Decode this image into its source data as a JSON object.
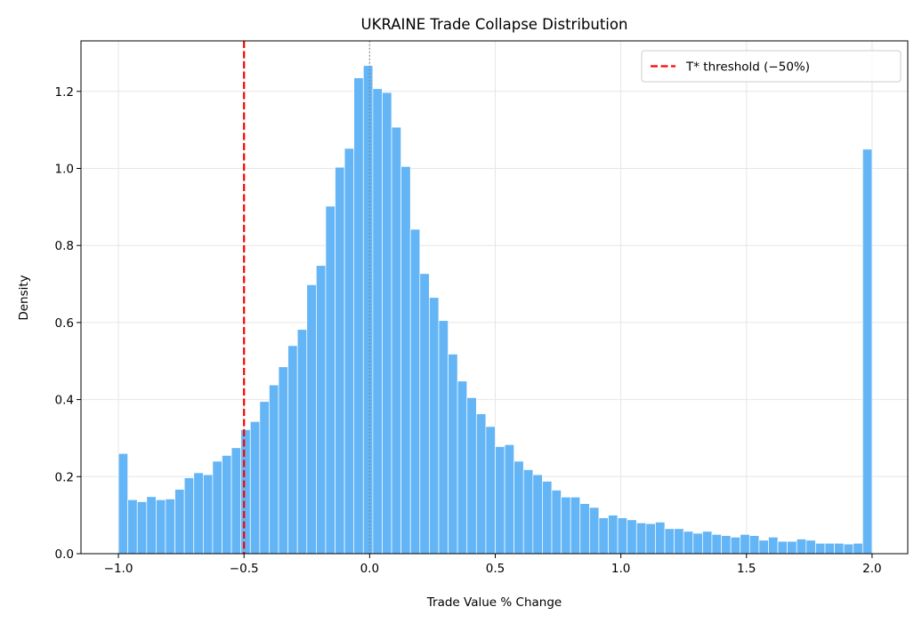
{
  "chart_data": {
    "type": "bar",
    "title": "UKRAINE Trade Collapse Distribution",
    "xlabel": "Trade Value % Change",
    "ylabel": "Density",
    "xlim": [
      -1.149,
      2.142
    ],
    "ylim": [
      0,
      1.331
    ],
    "grid": true,
    "legend_placement": "top-right",
    "bin_start": -1.0,
    "bin_end": 2.0,
    "bar_color": "#64b5f6",
    "x_ticks": [
      -1.0,
      -0.5,
      0.0,
      0.5,
      1.0,
      1.5,
      2.0
    ],
    "x_tick_labels": [
      "−1.0",
      "−0.5",
      "0.0",
      "0.5",
      "1.0",
      "1.5",
      "2.0"
    ],
    "y_ticks": [
      0,
      0.2,
      0.4,
      0.6,
      0.8,
      1.0,
      1.2
    ],
    "y_tick_labels": [
      "0.0",
      "0.2",
      "0.4",
      "0.6",
      "0.8",
      "1.0",
      "1.2"
    ],
    "values": [
      0.26,
      0.14,
      0.135,
      0.148,
      0.14,
      0.142,
      0.167,
      0.197,
      0.21,
      0.205,
      0.24,
      0.255,
      0.275,
      0.322,
      0.343,
      0.395,
      0.438,
      0.485,
      0.54,
      0.582,
      0.698,
      0.748,
      0.902,
      1.003,
      1.052,
      1.235,
      1.267,
      1.207,
      1.197,
      1.107,
      1.005,
      0.842,
      0.727,
      0.665,
      0.605,
      0.518,
      0.448,
      0.405,
      0.363,
      0.33,
      0.278,
      0.283,
      0.24,
      0.218,
      0.205,
      0.188,
      0.165,
      0.147,
      0.147,
      0.13,
      0.12,
      0.093,
      0.1,
      0.093,
      0.088,
      0.08,
      0.078,
      0.082,
      0.065,
      0.065,
      0.058,
      0.053,
      0.058,
      0.05,
      0.047,
      0.043,
      0.05,
      0.047,
      0.035,
      0.043,
      0.032,
      0.032,
      0.038,
      0.035,
      0.027,
      0.027,
      0.027,
      0.025,
      0.027,
      1.05
    ],
    "threshold": {
      "x": -0.5,
      "label": "T* threshold (−50%)",
      "color": "#ff0000"
    },
    "reference_line": {
      "x": 0.0,
      "color": "#808080"
    }
  }
}
